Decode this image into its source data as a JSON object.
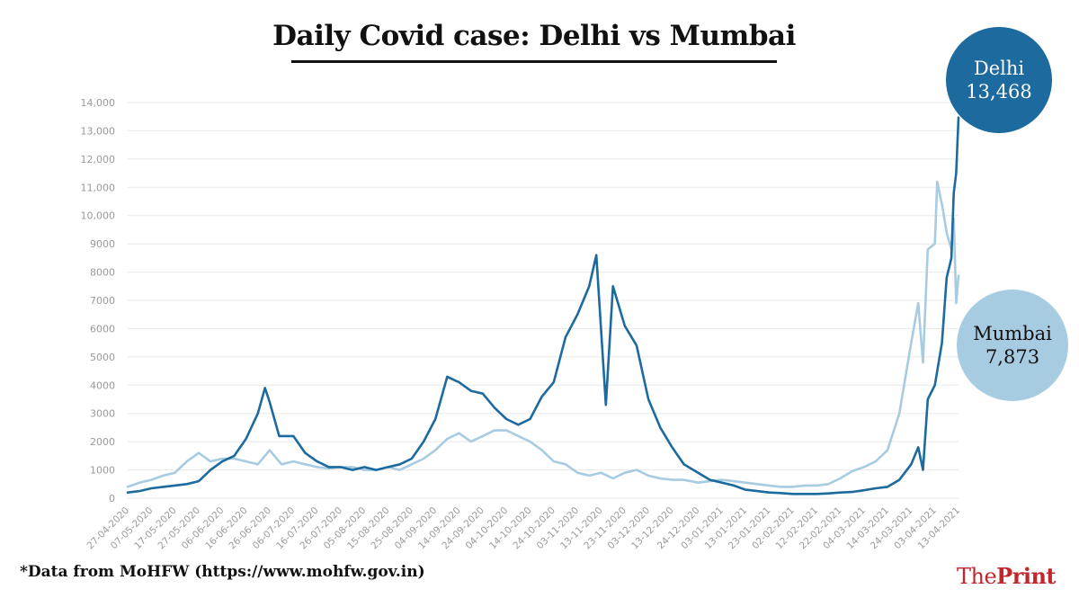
{
  "title": "Daily Covid case: Delhi vs Mumbai",
  "source": "*Data from MoHFW (https://www.mohfw.gov.in)",
  "logo": {
    "part1": "The",
    "part2": "Print"
  },
  "callouts": {
    "delhi": {
      "name": "Delhi",
      "value": "13,468"
    },
    "mumbai": {
      "name": "Mumbai",
      "value": "7,873"
    }
  },
  "colors": {
    "delhi": "#1d6a9e",
    "mumbai": "#a7cce1",
    "grid": "#e8e8e8",
    "tick": "#9a9a9a",
    "logo": "#c0272d"
  },
  "chart_data": {
    "type": "line",
    "title": "Daily Covid case: Delhi vs Mumbai",
    "ylim": [
      0,
      14000
    ],
    "y_ticks": [
      "0",
      "1000",
      "2000",
      "3000",
      "4000",
      "5000",
      "6000",
      "7000",
      "8000",
      "9000",
      "10,000",
      "11,000",
      "12,000",
      "13,000",
      "14,000"
    ],
    "x_ticks": [
      "27-04-2020",
      "07-05-2020",
      "17-05-2020",
      "27-05-2020",
      "06-06-2020",
      "16-06-2020",
      "26-06-2020",
      "06-07-2020",
      "16-07-2020",
      "26-07-2020",
      "05-08-2020",
      "15-08-2020",
      "25-08-2020",
      "04-09-2020",
      "14-09-2020",
      "24-09-2020",
      "04-10-2020",
      "14-10-2020",
      "24-10-2020",
      "03-11-2020",
      "13-11-2020",
      "23-11-2020",
      "03-12-2020",
      "13-12-2020",
      "24-12-2020",
      "03-01-2021",
      "13-01-2021",
      "23-01-2021",
      "02-02-2021",
      "12-02-2021",
      "22-02-2021",
      "04-03-2021",
      "14-03-2021",
      "24-03-2021",
      "03-04-2021",
      "13-04-2021"
    ],
    "grid": true,
    "series": [
      {
        "name": "Mumbai",
        "color": "#a7cce1",
        "points": [
          [
            "27-04-2020",
            400
          ],
          [
            "02-05-2020",
            550
          ],
          [
            "07-05-2020",
            650
          ],
          [
            "12-05-2020",
            800
          ],
          [
            "17-05-2020",
            900
          ],
          [
            "22-05-2020",
            1300
          ],
          [
            "27-05-2020",
            1600
          ],
          [
            "01-06-2020",
            1300
          ],
          [
            "06-06-2020",
            1400
          ],
          [
            "11-06-2020",
            1400
          ],
          [
            "16-06-2020",
            1300
          ],
          [
            "21-06-2020",
            1200
          ],
          [
            "26-06-2020",
            1700
          ],
          [
            "01-07-2020",
            1200
          ],
          [
            "06-07-2020",
            1300
          ],
          [
            "11-07-2020",
            1200
          ],
          [
            "16-07-2020",
            1100
          ],
          [
            "21-07-2020",
            1050
          ],
          [
            "26-07-2020",
            1100
          ],
          [
            "31-07-2020",
            1100
          ],
          [
            "05-08-2020",
            1000
          ],
          [
            "10-08-2020",
            1000
          ],
          [
            "15-08-2020",
            1100
          ],
          [
            "20-08-2020",
            1000
          ],
          [
            "25-08-2020",
            1200
          ],
          [
            "30-08-2020",
            1400
          ],
          [
            "04-09-2020",
            1700
          ],
          [
            "09-09-2020",
            2100
          ],
          [
            "14-09-2020",
            2300
          ],
          [
            "19-09-2020",
            2000
          ],
          [
            "24-09-2020",
            2200
          ],
          [
            "29-09-2020",
            2400
          ],
          [
            "04-10-2020",
            2400
          ],
          [
            "09-10-2020",
            2200
          ],
          [
            "14-10-2020",
            2000
          ],
          [
            "19-10-2020",
            1700
          ],
          [
            "24-10-2020",
            1300
          ],
          [
            "29-10-2020",
            1200
          ],
          [
            "03-11-2020",
            900
          ],
          [
            "08-11-2020",
            800
          ],
          [
            "13-11-2020",
            900
          ],
          [
            "18-11-2020",
            700
          ],
          [
            "23-11-2020",
            900
          ],
          [
            "28-11-2020",
            1000
          ],
          [
            "03-12-2020",
            800
          ],
          [
            "08-12-2020",
            700
          ],
          [
            "13-12-2020",
            650
          ],
          [
            "18-12-2020",
            650
          ],
          [
            "24-12-2020",
            550
          ],
          [
            "29-12-2020",
            600
          ],
          [
            "03-01-2021",
            650
          ],
          [
            "08-01-2021",
            600
          ],
          [
            "13-01-2021",
            550
          ],
          [
            "18-01-2021",
            500
          ],
          [
            "23-01-2021",
            450
          ],
          [
            "28-01-2021",
            400
          ],
          [
            "02-02-2021",
            400
          ],
          [
            "07-02-2021",
            450
          ],
          [
            "12-02-2021",
            450
          ],
          [
            "17-02-2021",
            500
          ],
          [
            "22-02-2021",
            700
          ],
          [
            "27-02-2021",
            950
          ],
          [
            "04-03-2021",
            1100
          ],
          [
            "09-03-2021",
            1300
          ],
          [
            "14-03-2021",
            1700
          ],
          [
            "19-03-2021",
            3000
          ],
          [
            "24-03-2021",
            5500
          ],
          [
            "27-03-2021",
            6900
          ],
          [
            "29-03-2021",
            4800
          ],
          [
            "31-03-2021",
            8800
          ],
          [
            "03-04-2021",
            9000
          ],
          [
            "04-04-2021",
            11200
          ],
          [
            "06-04-2021",
            10400
          ],
          [
            "08-04-2021",
            9400
          ],
          [
            "10-04-2021",
            8800
          ],
          [
            "11-04-2021",
            9900
          ],
          [
            "12-04-2021",
            6900
          ],
          [
            "13-04-2021",
            7873
          ]
        ]
      },
      {
        "name": "Delhi",
        "color": "#1d6a9e",
        "points": [
          [
            "27-04-2020",
            200
          ],
          [
            "02-05-2020",
            250
          ],
          [
            "07-05-2020",
            350
          ],
          [
            "12-05-2020",
            400
          ],
          [
            "17-05-2020",
            450
          ],
          [
            "22-05-2020",
            500
          ],
          [
            "27-05-2020",
            600
          ],
          [
            "01-06-2020",
            1000
          ],
          [
            "06-06-2020",
            1300
          ],
          [
            "11-06-2020",
            1500
          ],
          [
            "16-06-2020",
            2100
          ],
          [
            "21-06-2020",
            3000
          ],
          [
            "24-06-2020",
            3900
          ],
          [
            "26-06-2020",
            3400
          ],
          [
            "30-06-2020",
            2200
          ],
          [
            "06-07-2020",
            2200
          ],
          [
            "11-07-2020",
            1600
          ],
          [
            "16-07-2020",
            1300
          ],
          [
            "21-07-2020",
            1100
          ],
          [
            "26-07-2020",
            1100
          ],
          [
            "31-07-2020",
            1000
          ],
          [
            "05-08-2020",
            1100
          ],
          [
            "10-08-2020",
            1000
          ],
          [
            "15-08-2020",
            1100
          ],
          [
            "20-08-2020",
            1200
          ],
          [
            "25-08-2020",
            1400
          ],
          [
            "30-08-2020",
            2000
          ],
          [
            "04-09-2020",
            2800
          ],
          [
            "09-09-2020",
            4300
          ],
          [
            "14-09-2020",
            4100
          ],
          [
            "19-09-2020",
            3800
          ],
          [
            "24-09-2020",
            3700
          ],
          [
            "29-09-2020",
            3200
          ],
          [
            "04-10-2020",
            2800
          ],
          [
            "09-10-2020",
            2600
          ],
          [
            "14-10-2020",
            2800
          ],
          [
            "19-10-2020",
            3600
          ],
          [
            "24-10-2020",
            4100
          ],
          [
            "29-10-2020",
            5700
          ],
          [
            "03-11-2020",
            6500
          ],
          [
            "08-11-2020",
            7500
          ],
          [
            "11-11-2020",
            8600
          ],
          [
            "15-11-2020",
            3300
          ],
          [
            "18-11-2020",
            7500
          ],
          [
            "23-11-2020",
            6100
          ],
          [
            "28-11-2020",
            5400
          ],
          [
            "03-12-2020",
            3500
          ],
          [
            "08-12-2020",
            2500
          ],
          [
            "13-12-2020",
            1800
          ],
          [
            "18-12-2020",
            1200
          ],
          [
            "24-12-2020",
            900
          ],
          [
            "29-12-2020",
            650
          ],
          [
            "03-01-2021",
            550
          ],
          [
            "08-01-2021",
            450
          ],
          [
            "13-01-2021",
            300
          ],
          [
            "18-01-2021",
            250
          ],
          [
            "23-01-2021",
            200
          ],
          [
            "28-01-2021",
            180
          ],
          [
            "02-02-2021",
            150
          ],
          [
            "07-02-2021",
            150
          ],
          [
            "12-02-2021",
            150
          ],
          [
            "17-02-2021",
            170
          ],
          [
            "22-02-2021",
            200
          ],
          [
            "27-02-2021",
            220
          ],
          [
            "04-03-2021",
            280
          ],
          [
            "09-03-2021",
            350
          ],
          [
            "14-03-2021",
            400
          ],
          [
            "19-03-2021",
            650
          ],
          [
            "24-03-2021",
            1200
          ],
          [
            "27-03-2021",
            1800
          ],
          [
            "29-03-2021",
            1000
          ],
          [
            "31-03-2021",
            3500
          ],
          [
            "03-04-2021",
            4000
          ],
          [
            "06-04-2021",
            5500
          ],
          [
            "08-04-2021",
            7800
          ],
          [
            "10-04-2021",
            8500
          ],
          [
            "11-04-2021",
            10800
          ],
          [
            "12-04-2021",
            11500
          ],
          [
            "13-04-2021",
            13468
          ]
        ]
      }
    ]
  }
}
